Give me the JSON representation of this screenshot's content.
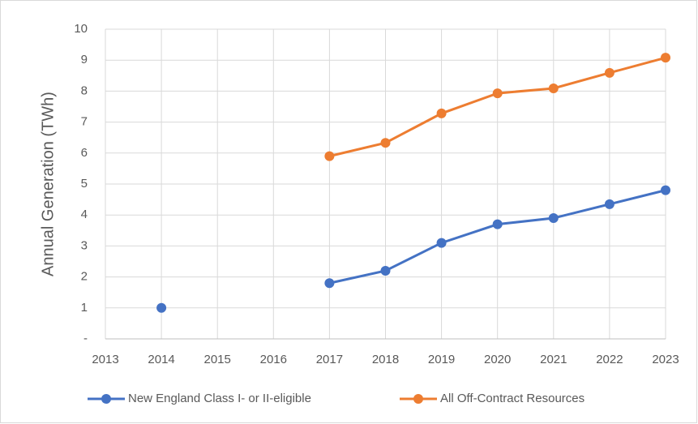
{
  "chart_data": {
    "type": "line",
    "y_label": "Annual Generation (TWh)",
    "x": [
      2013,
      2014,
      2015,
      2016,
      2017,
      2018,
      2019,
      2020,
      2021,
      2022,
      2023
    ],
    "xlim": [
      2013,
      2023
    ],
    "xticks": [
      2013,
      2014,
      2015,
      2016,
      2017,
      2018,
      2019,
      2020,
      2021,
      2022,
      2023
    ],
    "ylim": [
      0,
      10
    ],
    "yticks": [
      {
        "value": 0,
        "label": "-"
      },
      1,
      2,
      3,
      4,
      5,
      6,
      7,
      8,
      9,
      10
    ],
    "grid": true,
    "legend": "bottom",
    "series": [
      {
        "name": "New England Class I- or II-eligible",
        "color": "#4472c4",
        "values": [
          null,
          1.0,
          null,
          null,
          1.8,
          2.2,
          3.1,
          3.7,
          3.9,
          4.35,
          4.8
        ]
      },
      {
        "name": "All Off-Contract Resources",
        "color": "#ed7d31",
        "values": [
          null,
          null,
          null,
          null,
          5.9,
          6.33,
          7.28,
          7.93,
          8.09,
          8.59,
          9.08
        ]
      }
    ]
  }
}
